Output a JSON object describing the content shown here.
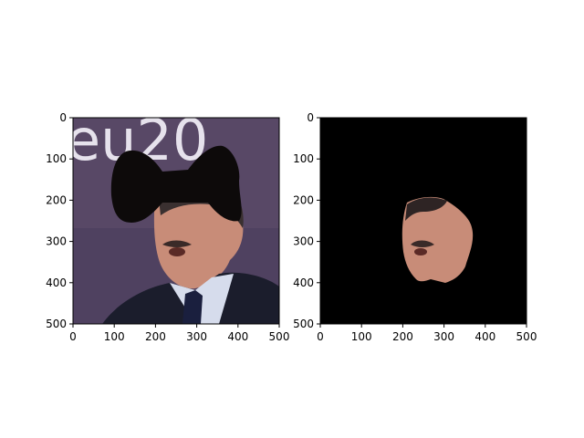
{
  "figure": {
    "background": "#ffffff"
  },
  "chart_data": [
    {
      "type": "image",
      "panel": "left",
      "content_icon": "photo-of-man-with-black-bow-tie-mask-over-eyes",
      "x_ticks": [
        0,
        100,
        200,
        300,
        400,
        500
      ],
      "y_ticks": [
        0,
        100,
        200,
        300,
        400,
        500
      ],
      "xlim": [
        0,
        500
      ],
      "ylim": [
        500,
        0
      ],
      "background_text": "eu20",
      "colors": {
        "backdrop": "#584866",
        "mask": "#0d0a0a",
        "suit": "#1b1d2c",
        "shirt": "#d6dcec",
        "skin": "#c88c78"
      }
    },
    {
      "type": "image",
      "panel": "right",
      "content_icon": "segmented-face-on-black-background",
      "x_ticks": [
        0,
        100,
        200,
        300,
        400,
        500
      ],
      "y_ticks": [
        0,
        100,
        200,
        300,
        400,
        500
      ],
      "xlim": [
        0,
        500
      ],
      "ylim": [
        500,
        0
      ],
      "colors": {
        "background": "#000000",
        "skin": "#c88c78"
      }
    }
  ]
}
